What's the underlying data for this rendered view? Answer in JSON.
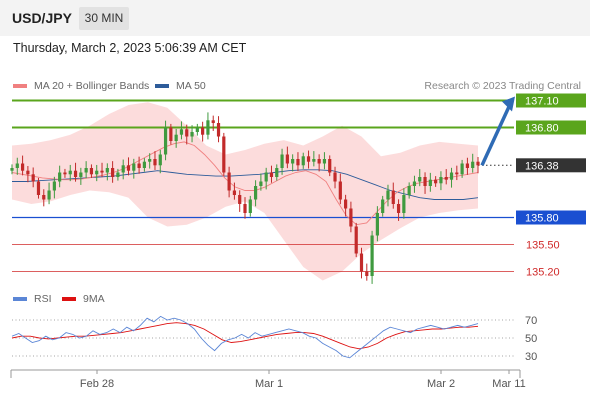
{
  "header": {
    "symbol": "USD/JPY",
    "timeframe": "30 MIN",
    "datetime": "Thursday, March 2, 2023 5:06:39 AM CET"
  },
  "legend": {
    "ma20_label": "MA 20 + Bollinger Bands",
    "ma20_color": "#f08080",
    "ma50_label": "MA 50",
    "ma50_color": "#2e5c9a",
    "copyright": "Research © 2023 Trading Central"
  },
  "rsi_legend": {
    "rsi_label": "RSI",
    "rsi_color": "#5b86d6",
    "ma_label": "9MA",
    "ma_color": "#dd1111"
  },
  "colors": {
    "bull": "#3f9a3f",
    "bear": "#c22a2a",
    "band": "#fbd6d6",
    "target": "#5aa51c",
    "pivot": "#1a4fd1",
    "support": "#d02a2a",
    "arrow": "#2f6bb5",
    "current": "#333333"
  },
  "chart_data": {
    "type": "candlestick",
    "instrument": "USD/JPY",
    "interval": "30 MIN",
    "price_range": [
      134.9,
      137.3
    ],
    "candles": [
      136.35,
      136.4,
      136.32,
      136.28,
      136.2,
      136.05,
      136.0,
      136.1,
      136.2,
      136.3,
      136.28,
      136.32,
      136.25,
      136.3,
      136.35,
      136.28,
      136.32,
      136.3,
      136.35,
      136.25,
      136.3,
      136.38,
      136.32,
      136.4,
      136.35,
      136.42,
      136.45,
      136.38,
      136.5,
      136.8,
      136.65,
      136.72,
      136.78,
      136.7,
      136.75,
      136.8,
      136.72,
      136.88,
      136.85,
      136.7,
      136.3,
      136.1,
      136.05,
      135.95,
      135.85,
      136.0,
      136.15,
      136.2,
      136.3,
      136.25,
      136.35,
      136.5,
      136.4,
      136.45,
      136.38,
      136.48,
      136.42,
      136.45,
      136.4,
      136.45,
      136.3,
      136.2,
      136.0,
      135.9,
      135.7,
      135.4,
      135.2,
      135.15,
      135.6,
      135.85,
      136.0,
      136.1,
      135.95,
      135.85,
      136.05,
      136.15,
      136.2,
      136.25,
      136.15,
      136.22,
      136.18,
      136.25,
      136.22,
      136.3,
      136.28,
      136.4,
      136.35,
      136.42,
      136.38
    ],
    "ma20": [
      136.3,
      136.28,
      136.26,
      136.24,
      136.23,
      136.22,
      136.22,
      136.23,
      136.25,
      136.27,
      136.3,
      136.34,
      136.4,
      136.46,
      136.52,
      136.58,
      136.62,
      136.64,
      136.6,
      136.5,
      136.38,
      136.24,
      136.14,
      136.1,
      136.1,
      136.14,
      136.2,
      136.26,
      136.3,
      136.32,
      136.28,
      136.2,
      136.0,
      135.82,
      135.72,
      135.74,
      135.86,
      135.98,
      136.08,
      136.14,
      136.18,
      136.2,
      136.22,
      136.24,
      136.26,
      136.28,
      136.3
    ],
    "ma50": [
      136.2,
      136.2,
      136.21,
      136.22,
      136.23,
      136.24,
      136.25,
      136.26,
      136.28,
      136.3,
      136.32,
      136.3,
      136.28,
      136.27,
      136.26,
      136.26,
      136.27,
      136.28,
      136.3,
      136.32,
      136.33,
      136.33,
      136.32,
      136.28,
      136.22,
      136.16,
      136.1,
      136.06,
      136.02,
      136.0,
      136.0,
      136.0,
      136.02
    ],
    "bollinger_upper": [
      136.6,
      136.62,
      136.66,
      136.72,
      136.82,
      136.95,
      137.05,
      137.08,
      137.02,
      136.82,
      136.6,
      136.5,
      136.55,
      136.62,
      136.66,
      136.6,
      136.7,
      136.82,
      136.7,
      136.48,
      136.52,
      136.6,
      136.64,
      136.62,
      136.6
    ],
    "bollinger_lower": [
      136.0,
      135.95,
      135.98,
      136.05,
      136.1,
      136.08,
      136.02,
      135.8,
      135.7,
      135.72,
      135.8,
      135.92,
      135.98,
      135.85,
      135.55,
      135.25,
      135.1,
      135.2,
      135.4,
      135.55,
      135.68,
      135.8,
      135.85,
      135.88,
      135.9
    ],
    "levels": [
      {
        "value": "137.10",
        "role": "target"
      },
      {
        "value": "136.80",
        "role": "target"
      },
      {
        "value": "136.38",
        "role": "current"
      },
      {
        "value": "135.80",
        "role": "pivot"
      },
      {
        "value": "135.50",
        "role": "support"
      },
      {
        "value": "135.20",
        "role": "support"
      }
    ],
    "projection": {
      "from": 136.38,
      "to": 137.1
    },
    "x_tick_labels": [
      "Feb 28",
      "Mar 1",
      "Mar 2",
      "Mar 11"
    ],
    "rsi": {
      "levels": [
        "70",
        "50",
        "30"
      ],
      "range": [
        20,
        80
      ],
      "rsi_values": [
        52,
        55,
        50,
        45,
        47,
        52,
        48,
        50,
        56,
        54,
        50,
        52,
        58,
        54,
        56,
        60,
        56,
        62,
        58,
        64,
        72,
        68,
        74,
        70,
        72,
        70,
        66,
        60,
        50,
        42,
        36,
        44,
        48,
        50,
        54,
        50,
        56,
        52,
        54,
        56,
        58,
        60,
        58,
        56,
        52,
        50,
        44,
        40,
        36,
        30,
        28,
        34,
        40,
        46,
        52,
        58,
        62,
        60,
        58,
        56,
        60,
        62,
        64,
        62,
        60,
        62,
        64,
        62,
        64,
        66
      ],
      "ma_values": [
        50,
        52,
        52,
        50,
        49,
        50,
        51,
        52,
        52,
        53,
        54,
        55,
        56,
        58,
        60,
        62,
        64,
        66,
        67,
        66,
        64,
        60,
        54,
        48,
        45,
        46,
        48,
        50,
        52,
        54,
        55,
        56,
        56,
        55,
        52,
        48,
        44,
        40,
        38,
        40,
        44,
        50,
        54,
        57,
        58,
        59,
        60,
        60,
        61,
        62,
        62,
        63
      ]
    }
  }
}
